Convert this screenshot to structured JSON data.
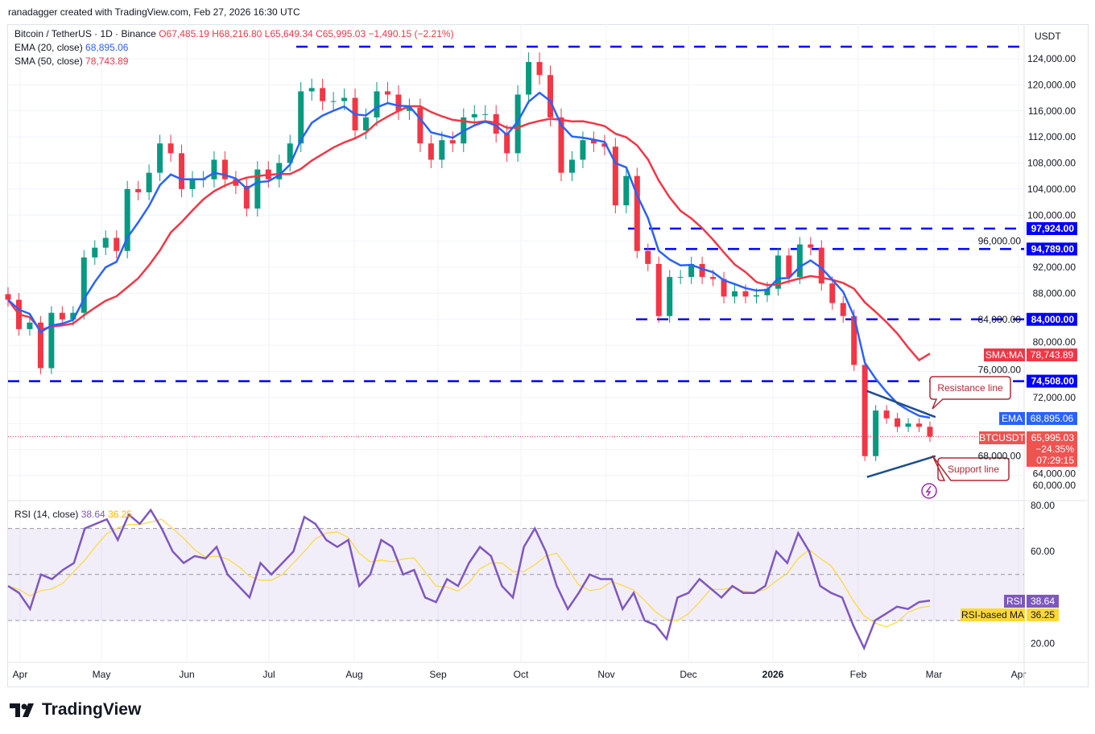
{
  "credit": "ranadagger created with TradingView.com, Feb 27, 2026 16:30 UTC",
  "legend": {
    "symbol": "Bitcoin / TetherUS · 1D · Binance",
    "o": "O67,485.19",
    "h": "H68,216.80",
    "l": "L65,649.34",
    "c": "C65,995.03",
    "chg": "−1,490.15 (−2.21%)",
    "ema_label": "EMA (20, close)",
    "ema_value": "68,895.06",
    "sma_label": "SMA (50, close)",
    "sma_value": "78,743.89",
    "rsi_label": "RSI (14, close)",
    "rsi_value": "38.64",
    "rsi_ma_value": "36.25"
  },
  "currency": "USDT",
  "brand": "TradingView",
  "colors": {
    "up": "#089981",
    "down": "#f23645",
    "ema": "#2962ff",
    "sma": "#f23645",
    "level": "#0000ff",
    "rsi": "#7e57c2",
    "rsi_ma": "#fdd835",
    "trend": "#1e4d8c"
  },
  "chart_data": {
    "type": "candlestick",
    "x_ticks": [
      "Apr",
      "May",
      "Jun",
      "Jul",
      "Aug",
      "Sep",
      "Oct",
      "Nov",
      "Dec",
      "2026",
      "Feb",
      "Mar",
      "Apr"
    ],
    "price_ticks": [
      124000,
      120000,
      116000,
      112000,
      108000,
      104000,
      100000,
      96000,
      92000,
      88000,
      84000,
      80000,
      76000,
      72000,
      68000,
      64000,
      60000
    ],
    "price_tick_labels": [
      "124,000.00",
      "120,000.00",
      "116,000.00",
      "112,000.00",
      "108,000.00",
      "104,000.00",
      "100,000.00",
      "96,000.00",
      "92,000.00",
      "88,000.00",
      "84,000.00",
      "80,000.00",
      "76,000.00",
      "72,000.00",
      "68,000.00",
      "64,000.00",
      "60,000.00"
    ],
    "date_range": [
      "2025-03-27",
      "2026-02-27"
    ],
    "closes": [
      87000,
      82500,
      83500,
      76500,
      85000,
      84000,
      85000,
      93500,
      95000,
      96500,
      94500,
      104000,
      103500,
      106500,
      111000,
      109500,
      104000,
      105500,
      105500,
      108500,
      105500,
      104500,
      101000,
      107000,
      105500,
      108000,
      111000,
      119000,
      119500,
      117500,
      117500,
      118000,
      113000,
      115000,
      119000,
      118500,
      116000,
      116500,
      111000,
      108500,
      111500,
      111000,
      115000,
      115500,
      115500,
      112500,
      109500,
      118500,
      123500,
      121500,
      115000,
      106500,
      108500,
      111500,
      111000,
      110500,
      101500,
      106000,
      94500,
      92500,
      84500,
      90500,
      90500,
      92500,
      90500,
      90200,
      87500,
      88300,
      87500,
      87700,
      88700,
      93800,
      90500,
      95500,
      95000,
      89500,
      86500,
      84500,
      77000,
      63000,
      70000,
      68800,
      67500,
      68000,
      67500,
      65995.03
    ],
    "ema20": {
      "name": "EMA",
      "last": 68895.06,
      "last_label": "68,895.06"
    },
    "sma50": {
      "name": "SMA:MA",
      "last": 78743.89,
      "last_label": "78,743.89"
    },
    "levels": [
      {
        "value": 125850,
        "label": ""
      },
      {
        "value": 97924,
        "label": "97,924.00"
      },
      {
        "value": 94789,
        "label": "94,789.00"
      },
      {
        "value": 84000,
        "label": "84,000.00"
      },
      {
        "value": 74508,
        "label": "74,508.00"
      }
    ],
    "trendlines": [
      {
        "name": "Resistance line",
        "from": [
          "2026-02-04",
          73000
        ],
        "to": [
          "2026-03-01",
          69000
        ]
      },
      {
        "name": "Support line",
        "from": [
          "2026-02-04",
          59800
        ],
        "to": [
          "2026-03-01",
          63000
        ]
      }
    ],
    "last_price": {
      "symbol": "BTCUSDT",
      "value": "65,995.03",
      "change": "−24.35%",
      "countdown": "07:29:15"
    },
    "rsi": {
      "ticks": [
        "80.00",
        "60.00",
        "20.00"
      ],
      "overbought": 70,
      "mid": 50,
      "oversold": 30,
      "values": [
        45,
        42,
        35,
        50,
        48,
        52,
        55,
        70,
        72,
        74,
        65,
        76,
        72,
        78,
        70,
        60,
        55,
        58,
        57,
        62,
        50,
        45,
        40,
        55,
        50,
        55,
        60,
        75,
        72,
        65,
        62,
        65,
        45,
        50,
        65,
        62,
        50,
        52,
        40,
        38,
        48,
        45,
        55,
        62,
        58,
        45,
        40,
        62,
        70,
        60,
        45,
        35,
        42,
        50,
        48,
        48,
        35,
        42,
        30,
        28,
        22,
        40,
        42,
        48,
        44,
        40,
        45,
        42,
        42,
        45,
        60,
        55,
        68,
        60,
        45,
        42,
        40,
        28,
        18,
        30,
        33,
        36,
        35,
        38,
        38.64
      ],
      "rsi_tag": "RSI",
      "ma_tag": "RSI-based MA",
      "rsi_last": "38.64",
      "ma_last": "36.25"
    }
  }
}
